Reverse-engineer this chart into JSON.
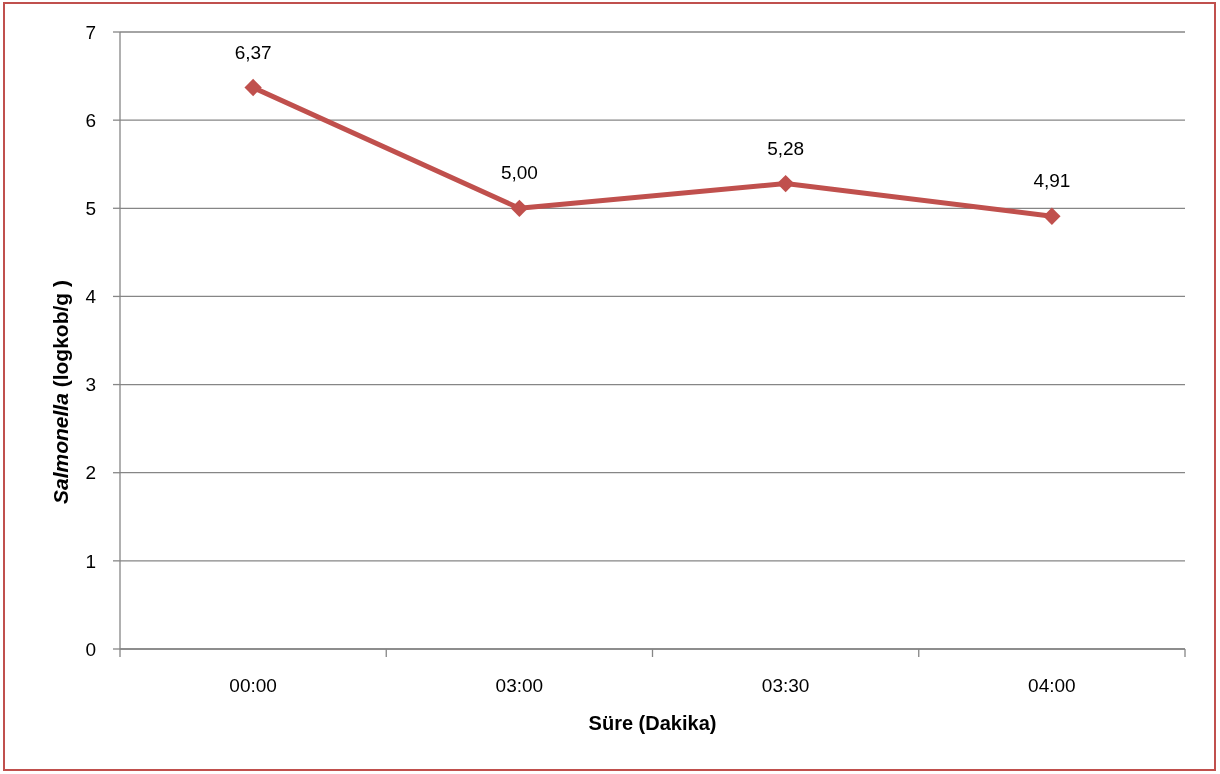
{
  "chart_data": {
    "type": "line",
    "categories": [
      "00:00",
      "03:00",
      "03:30",
      "04:00"
    ],
    "series": [
      {
        "color": "#c0504d",
        "values": [
          6.37,
          5.0,
          5.28,
          4.91
        ],
        "value_labels": [
          "6,37",
          "5,00",
          "5,28",
          "4,91"
        ]
      }
    ],
    "xlabel": "Süre (Dakika)",
    "ylabel": "Salmonella (logkob/g )",
    "ylim": [
      0,
      7
    ],
    "yticks": [
      0,
      1,
      2,
      3,
      4,
      5,
      6,
      7
    ],
    "grid": "y",
    "marker": "diamond"
  }
}
